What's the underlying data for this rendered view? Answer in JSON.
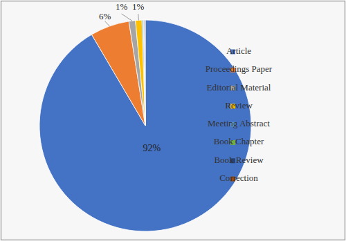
{
  "chart_data": {
    "type": "pie",
    "categories": [
      "Article",
      "Proceedings Paper",
      "Editorial Material",
      "Review",
      "Meeting Abstract",
      "Book Chapter",
      "Book Review",
      "Correction"
    ],
    "values": [
      92,
      6,
      1,
      1,
      0.2,
      0.1,
      0.1,
      0.1
    ],
    "value_labels": [
      "92%",
      "6%",
      "1%",
      "1%",
      null,
      null,
      null,
      null
    ],
    "colors": [
      "#4472c4",
      "#ed7d31",
      "#a5a5a5",
      "#ffc000",
      "#5b9bd5",
      "#70ad47",
      "#264478",
      "#9e480e"
    ],
    "data_labels": true,
    "legend": "right"
  }
}
